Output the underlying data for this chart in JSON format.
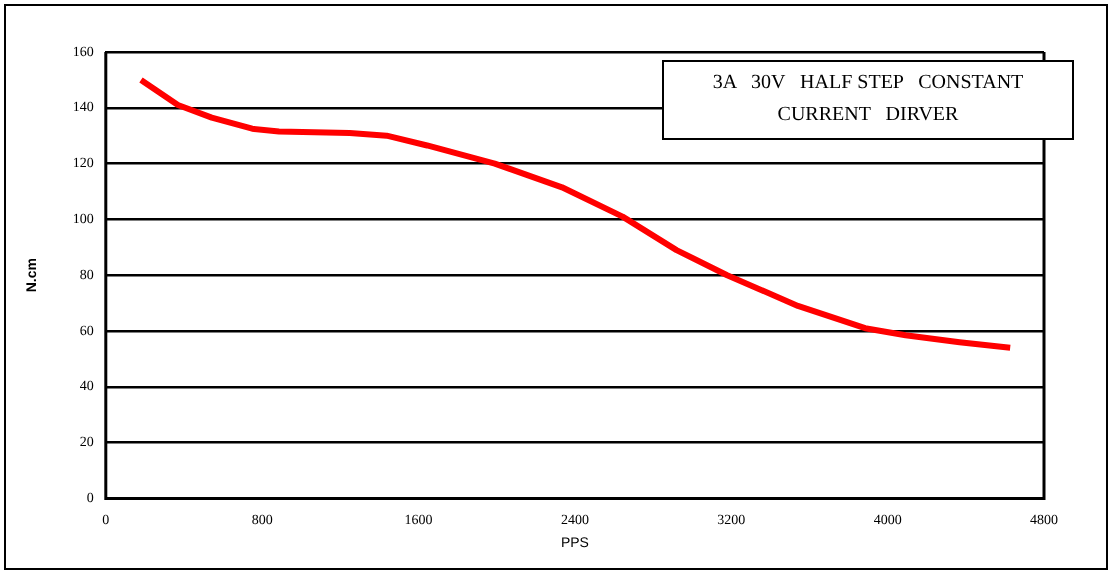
{
  "chart_data": {
    "type": "line",
    "xlabel": "PPS",
    "ylabel": "N.cm",
    "annotations": [
      "3A   30V   HALF STEP   CONSTANT   CURRENT   DIRVER"
    ],
    "xlim": [
      0,
      4800
    ],
    "xticks": [
      0,
      800,
      1600,
      2400,
      3200,
      4000,
      4800
    ],
    "ylim": [
      0,
      160
    ],
    "yticks": [
      0,
      20,
      40,
      60,
      80,
      100,
      120,
      140,
      160
    ],
    "grid": "y",
    "legend": false,
    "marker": "none",
    "line_style": "solid",
    "series": [
      {
        "color": "#ff0000",
        "x": [
          180,
          369,
          542,
          749,
          886,
          1248,
          1437,
          1644,
          1990,
          2334,
          2644,
          2920,
          3179,
          3541,
          3885,
          4092,
          4368,
          4627
        ],
        "values": [
          150,
          141,
          136.5,
          132.5,
          131.5,
          131,
          130,
          126.5,
          120,
          111.5,
          101,
          89,
          80,
          69,
          61,
          58.5,
          56,
          54
        ]
      }
    ]
  }
}
